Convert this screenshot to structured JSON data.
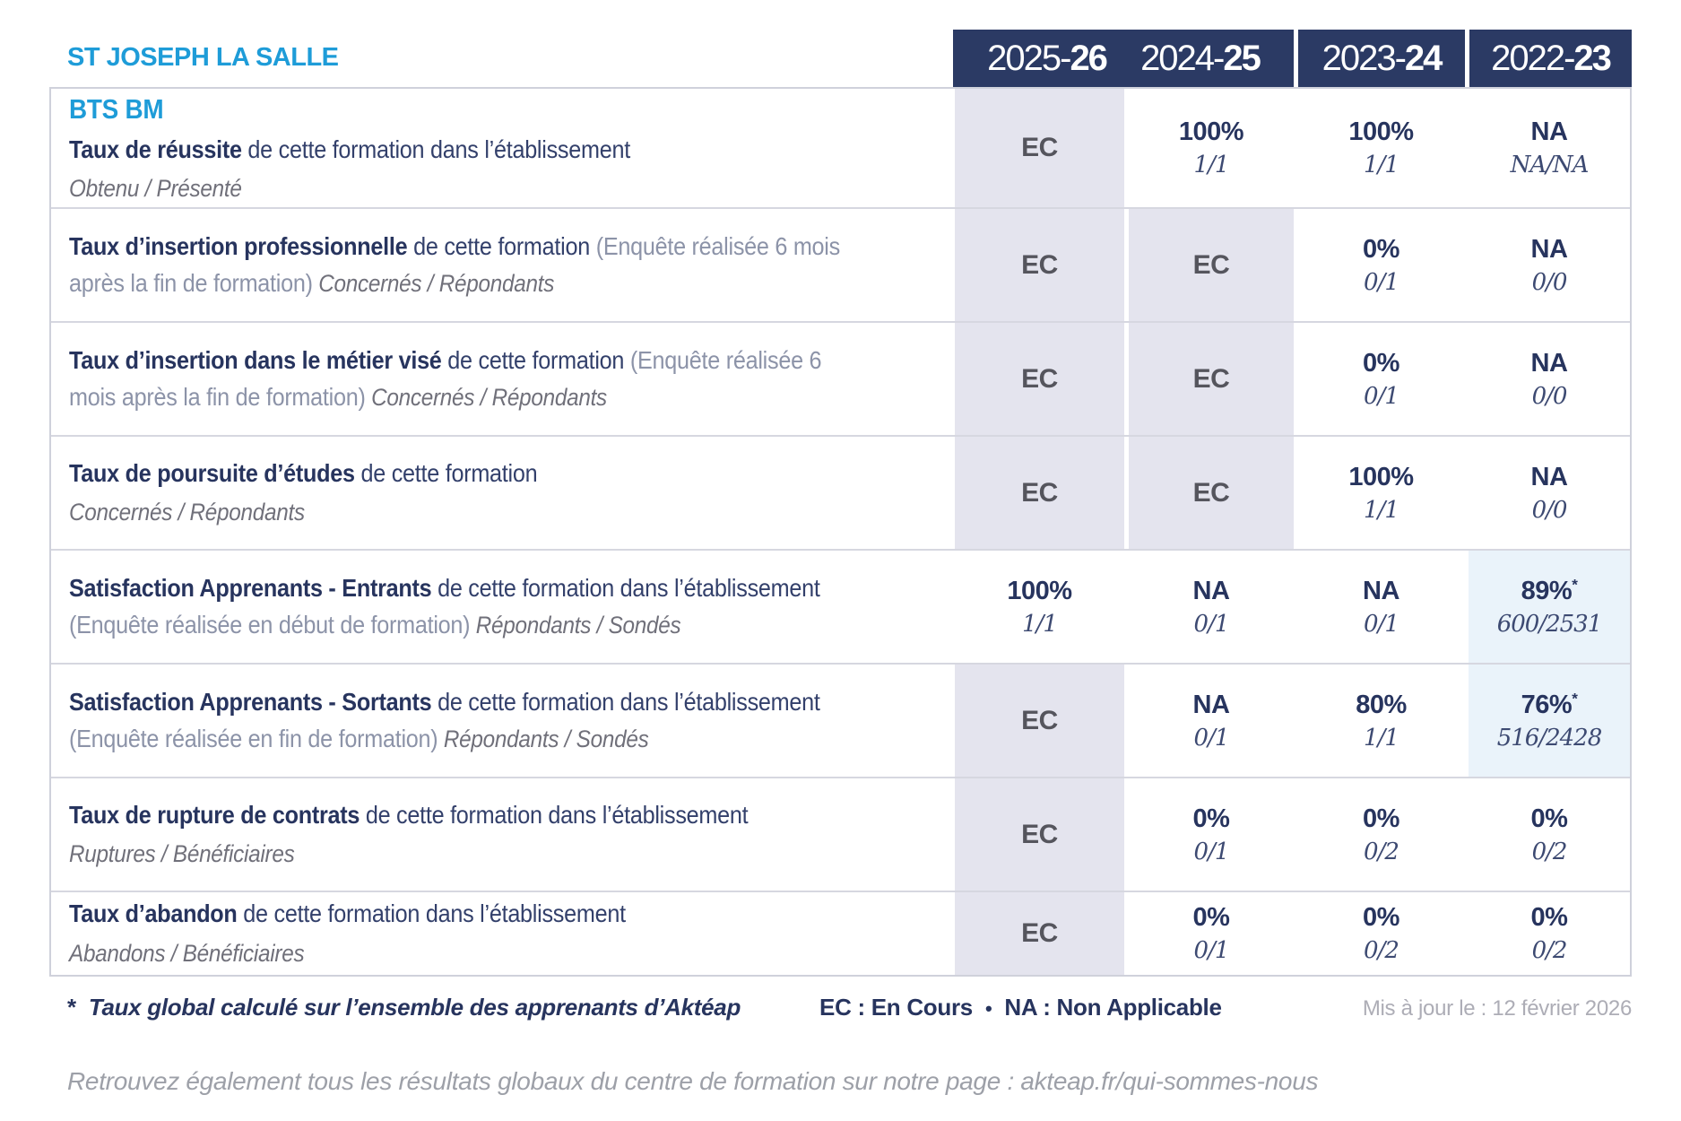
{
  "school": "ST JOSEPH LA SALLE",
  "columns": [
    {
      "label": "2025-26",
      "prefix": "2025-",
      "suffix": "26"
    },
    {
      "label": "2024-25",
      "prefix": "2024-",
      "suffix": "25"
    },
    {
      "label": "2023-24",
      "prefix": "2023-",
      "suffix": "24"
    },
    {
      "label": "2022-23",
      "prefix": "2022-",
      "suffix": "23"
    }
  ],
  "rows": [
    {
      "program": "BTS BM",
      "title": "Taux de réussite",
      "text": "de cette formation dans l’établissement",
      "paren": "",
      "sub": "Obtenu / Présenté",
      "sub_break": true,
      "values": [
        {
          "main": "EC"
        },
        {
          "main": "100%",
          "sub": "1/1"
        },
        {
          "main": "100%",
          "sub": "1/1"
        },
        {
          "main": "NA",
          "sub": "NA/NA"
        }
      ]
    },
    {
      "title": "Taux d’insertion professionnelle",
      "text": "de cette formation",
      "paren": "(Enquête réalisée 6 mois après la fin de formation)",
      "sub": "Concernés / Répondants",
      "sub_break": false,
      "values": [
        {
          "main": "EC"
        },
        {
          "main": "EC"
        },
        {
          "main": "0%",
          "sub": "0/1"
        },
        {
          "main": "NA",
          "sub": "0/0"
        }
      ]
    },
    {
      "title": "Taux d’insertion dans le métier visé",
      "text": "de cette formation",
      "paren": "(Enquête réalisée 6 mois après la fin de formation)",
      "sub": "Concernés / Répondants",
      "sub_break": false,
      "values": [
        {
          "main": "EC"
        },
        {
          "main": "EC"
        },
        {
          "main": "0%",
          "sub": "0/1"
        },
        {
          "main": "NA",
          "sub": "0/0"
        }
      ]
    },
    {
      "title": "Taux de poursuite d’études",
      "text": "de cette formation",
      "paren": "",
      "sub": "Concernés / Répondants",
      "sub_break": true,
      "values": [
        {
          "main": "EC"
        },
        {
          "main": "EC"
        },
        {
          "main": "100%",
          "sub": "1/1"
        },
        {
          "main": "NA",
          "sub": "0/0"
        }
      ]
    },
    {
      "title": "Satisfaction Apprenants - Entrants",
      "text": "de cette formation dans l’établissement",
      "paren": "(Enquête réalisée en début de formation)",
      "sub": "Répondants / Sondés",
      "sub_break": false,
      "values": [
        {
          "main": "100%",
          "sub": "1/1"
        },
        {
          "main": "NA",
          "sub": "0/1"
        },
        {
          "main": "NA",
          "sub": "0/1"
        },
        {
          "main": "89%",
          "star": "*",
          "sub": "600/2531"
        }
      ]
    },
    {
      "title": "Satisfaction Apprenants - Sortants",
      "text": "de cette formation dans l’établissement",
      "paren": "(Enquête réalisée en fin de formation)",
      "sub": "Répondants / Sondés",
      "sub_break": false,
      "values": [
        {
          "main": "EC"
        },
        {
          "main": "NA",
          "sub": "0/1"
        },
        {
          "main": "80%",
          "sub": "1/1"
        },
        {
          "main": "76%",
          "star": "*",
          "sub": "516/2428"
        }
      ]
    },
    {
      "title": "Taux de rupture de contrats",
      "text": "de cette formation dans l’établissement",
      "paren": "",
      "sub": "Ruptures / Bénéficiaires",
      "sub_break": true,
      "values": [
        {
          "main": "EC"
        },
        {
          "main": "0%",
          "sub": "0/1"
        },
        {
          "main": "0%",
          "sub": "0/2"
        },
        {
          "main": "0%",
          "sub": "0/2"
        }
      ]
    },
    {
      "title": "Taux d’abandon",
      "text": "de cette formation dans l’établissement",
      "paren": "",
      "sub": "Abandons / Bénéficiaires",
      "sub_break": true,
      "values": [
        {
          "main": "EC"
        },
        {
          "main": "0%",
          "sub": "0/1"
        },
        {
          "main": "0%",
          "sub": "0/2"
        },
        {
          "main": "0%",
          "sub": "0/2"
        }
      ]
    }
  ],
  "legend": {
    "star_symbol": "*",
    "star_note": "Taux global calculé sur l’ensemble des apprenants d’Aktéap",
    "ec_label": "EC : En Cours",
    "bullet": "•",
    "na_label": "NA : Non Applicable",
    "updated": "Mis à jour le : 12 février 2026"
  },
  "footer_line": "Retrouvez également tous les résultats globaux du centre de formation sur notre page : akteap.fr/qui-sommes-nous",
  "colors": {
    "navy": "#2b3a64",
    "brand_blue": "#1e9cd8",
    "ec_gray": "#55555d",
    "lavender_cell": "#e4e4ee",
    "highlight_cell": "#eaf3fa",
    "border": "#cfd1db",
    "muted_gray": "#9da0a8"
  }
}
